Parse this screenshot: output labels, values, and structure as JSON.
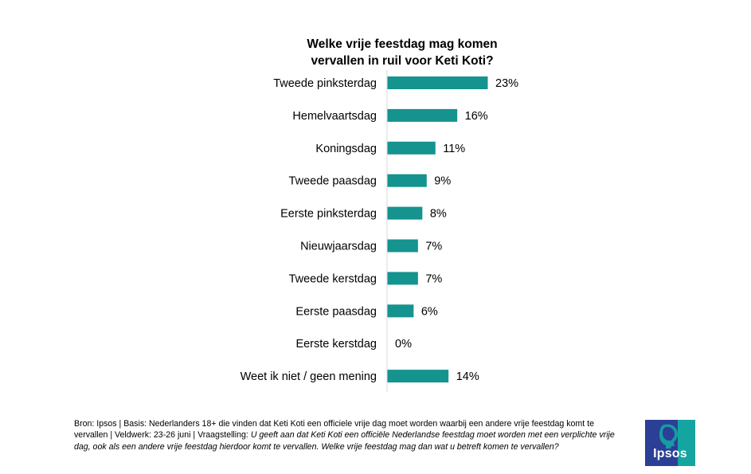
{
  "chart_data": {
    "type": "bar",
    "orientation": "horizontal",
    "title": [
      "Welke vrije feestdag mag komen",
      "vervallen in ruil voor Keti Koti?"
    ],
    "categories": [
      "Tweede pinksterdag",
      "Hemelvaartsdag",
      "Koningsdag",
      "Tweede paasdag",
      "Eerste pinksterdag",
      "Nieuwjaarsdag",
      "Tweede kerstdag",
      "Eerste paasdag",
      "Eerste kerstdag",
      "Weet ik niet / geen mening"
    ],
    "values": [
      23,
      16,
      11,
      9,
      8,
      7,
      7,
      6,
      0,
      14
    ],
    "value_labels": [
      "23%",
      "16%",
      "11%",
      "9%",
      "8%",
      "7%",
      "7%",
      "6%",
      "0%",
      "14%"
    ],
    "unit": "%",
    "xlim": [
      0,
      30
    ],
    "bar_color": "#15938F",
    "grid": false,
    "legend": "none"
  },
  "footer": {
    "text_plain": "Bron: Ipsos |  Basis: Nederlanders 18+  die vinden dat Keti Koti een officiele vrije dag  moet worden waarbij een andere vrije feestdag komt te vervallen | Veldwerk: 23-26 juni | Vraagstelling: ",
    "text_italic": "U geeft aan dat Keti Koti een officiële Nederlandse feestdag moet worden met een verplichte vrije dag, ook als een andere vrije feestdag hierdoor komt te vervallen. Welke vrije feestdag mag dan wat u betreft komen te vervallen?"
  },
  "logo": {
    "wordmark": "Ipsos",
    "colors": {
      "blue": "#2B3F96",
      "teal": "#14A5A1"
    }
  }
}
